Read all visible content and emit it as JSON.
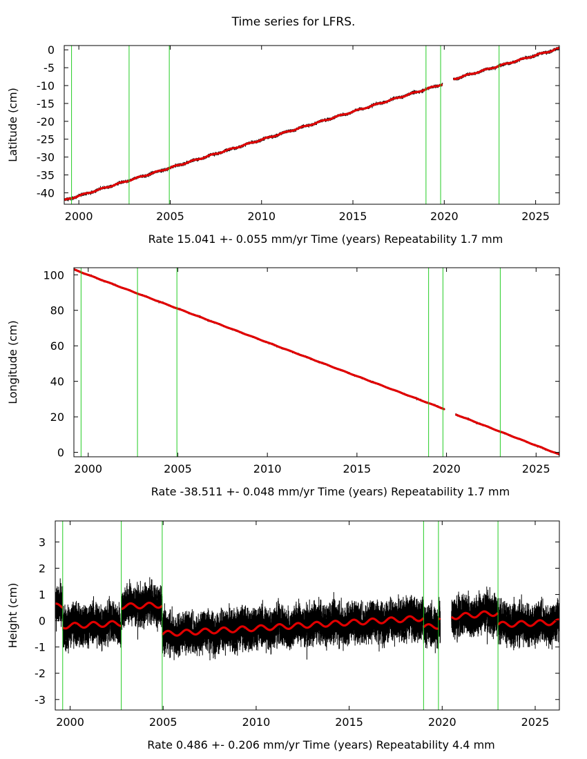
{
  "page": {
    "title": "Time series for LFRS."
  },
  "colors": {
    "data": "#000000",
    "model": "#e00000",
    "breaks": "#22cc22",
    "frame": "#000000"
  },
  "chart_data": [
    {
      "type": "scatter",
      "ylabel": "Latitude (cm)",
      "xlabel": "Rate 15.041 +- 0.055 mm/yr    Time (years)    Repeatability 1.7 mm",
      "xlim": [
        1999.2,
        2026.3
      ],
      "ylim": [
        -43.2,
        1.2
      ],
      "xticks": [
        2000,
        2005,
        2010,
        2015,
        2020,
        2025
      ],
      "yticks": [
        0,
        -5,
        -10,
        -15,
        -20,
        -25,
        -30,
        -35,
        -40
      ],
      "breaks": [
        1999.6,
        2002.75,
        2004.95,
        2019.0,
        2019.8,
        2023.0
      ],
      "gap": [
        2019.9,
        2020.5
      ],
      "segments": [
        {
          "x": [
            1999.2,
            2019.9
          ],
          "y": [
            -42.1,
            -9.6
          ]
        },
        {
          "x": [
            2020.5,
            2026.3
          ],
          "y": [
            -8.2,
            0.4
          ]
        }
      ],
      "noise": 0.35,
      "seasonal": 0.15
    },
    {
      "type": "scatter",
      "ylabel": "Longitude (cm)",
      "xlabel": "Rate -38.511 +- 0.048 mm/yr    Time (years)    Repeatability 1.7 mm",
      "xlim": [
        1999.2,
        2026.3
      ],
      "ylim": [
        -2.5,
        104
      ],
      "xticks": [
        2000,
        2005,
        2010,
        2015,
        2020,
        2025
      ],
      "yticks": [
        0,
        20,
        40,
        60,
        80,
        100
      ],
      "breaks": [
        1999.6,
        2002.75,
        2004.95,
        2019.0,
        2019.8,
        2023.0
      ],
      "gap": [
        2019.9,
        2020.5
      ],
      "segments": [
        {
          "x": [
            1999.2,
            2019.9
          ],
          "y": [
            103.0,
            24.3
          ]
        },
        {
          "x": [
            2020.5,
            2026.3
          ],
          "y": [
            21.4,
            -1.2
          ]
        }
      ],
      "noise": 0.45,
      "seasonal": 0.1
    },
    {
      "type": "scatter",
      "ylabel": "Height (cm)",
      "xlabel": "Rate 0.486 +- 0.206 mm/yr    Time (years)    Repeatability 4.4 mm",
      "xlim": [
        1999.2,
        2026.3
      ],
      "ylim": [
        -3.4,
        3.8
      ],
      "xticks": [
        2000,
        2005,
        2010,
        2015,
        2020,
        2025
      ],
      "yticks": [
        3,
        2,
        1,
        0,
        -1,
        -2,
        -3
      ],
      "breaks": [
        1999.6,
        2002.75,
        2004.95,
        2019.0,
        2019.8,
        2023.0
      ],
      "gap": [
        2019.9,
        2020.5
      ],
      "segments": [
        {
          "x": [
            1999.2,
            1999.6
          ],
          "y": [
            0.55,
            0.55
          ]
        },
        {
          "x": [
            1999.6,
            2002.75
          ],
          "y": [
            -0.2,
            -0.1
          ]
        },
        {
          "x": [
            2002.75,
            2004.95
          ],
          "y": [
            0.55,
            0.6
          ]
        },
        {
          "x": [
            2004.95,
            2019.0
          ],
          "y": [
            -0.5,
            0.1
          ]
        },
        {
          "x": [
            2019.0,
            2019.8
          ],
          "y": [
            -0.25,
            -0.2
          ]
        },
        {
          "x": [
            2019.8,
            2019.9
          ],
          "y": [
            0.15,
            0.15
          ]
        },
        {
          "x": [
            2020.5,
            2023.0
          ],
          "y": [
            0.15,
            0.3
          ]
        },
        {
          "x": [
            2023.0,
            2026.3
          ],
          "y": [
            -0.15,
            -0.05
          ]
        }
      ],
      "noise": 0.55,
      "seasonal": 0.1
    }
  ]
}
